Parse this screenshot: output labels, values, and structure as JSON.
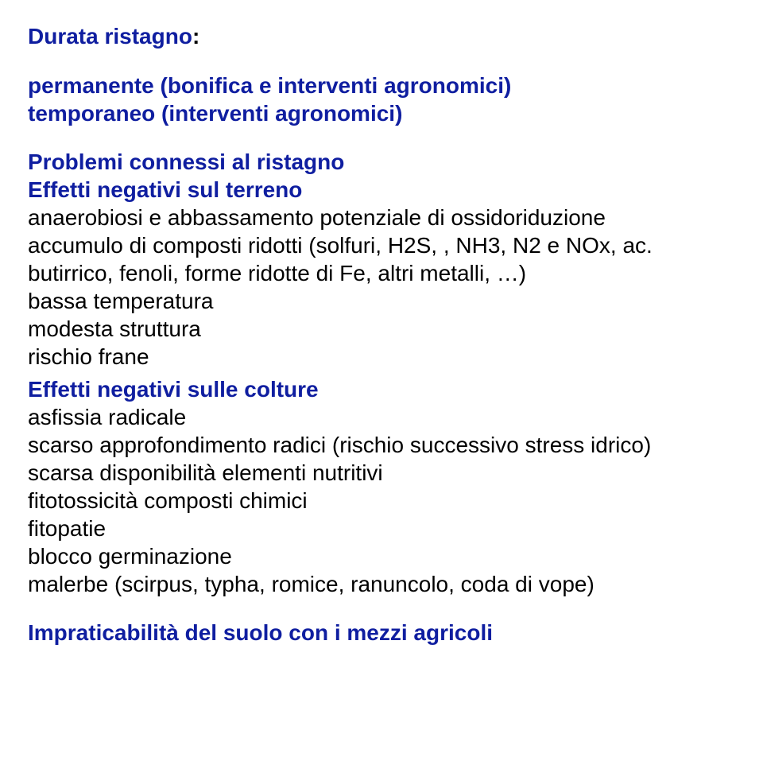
{
  "colors": {
    "blue": "#0f1ea0",
    "black": "#000000",
    "background": "#ffffff"
  },
  "typography": {
    "font_family": "Arial, Helvetica, sans-serif",
    "font_size_pt": 21,
    "line_height": 1.25
  },
  "title": {
    "main": "Durata ristagno",
    "colon": ":"
  },
  "perm": "permanente (bonifica e interventi agronomici)",
  "temp": "temporaneo (interventi agronomici)",
  "problemi": "Problemi connessi al ristagno",
  "eff_terreno": "Effetti negativi sul terreno",
  "terreno_lines": [
    "anaerobiosi e abbassamento potenziale di ossidoriduzione",
    "accumulo di composti ridotti (solfuri, H2S, , NH3, N2 e NOx, ac. butirrico, fenoli, forme ridotte di Fe, altri metalli, …)",
    "bassa temperatura",
    "modesta struttura",
    "rischio frane"
  ],
  "eff_colture": "Effetti negativi sulle colture",
  "colture_lines": [
    "asfissia radicale",
    "scarso approfondimento radici (rischio successivo stress idrico)",
    "scarsa disponibilità elementi nutritivi",
    "fitotossicità composti chimici",
    "fitopatie",
    "blocco germinazione",
    "malerbe (scirpus, typha, romice, ranuncolo,  coda di vope)"
  ],
  "impraticabilita": "Impraticabilità del suolo con i mezzi agricoli"
}
